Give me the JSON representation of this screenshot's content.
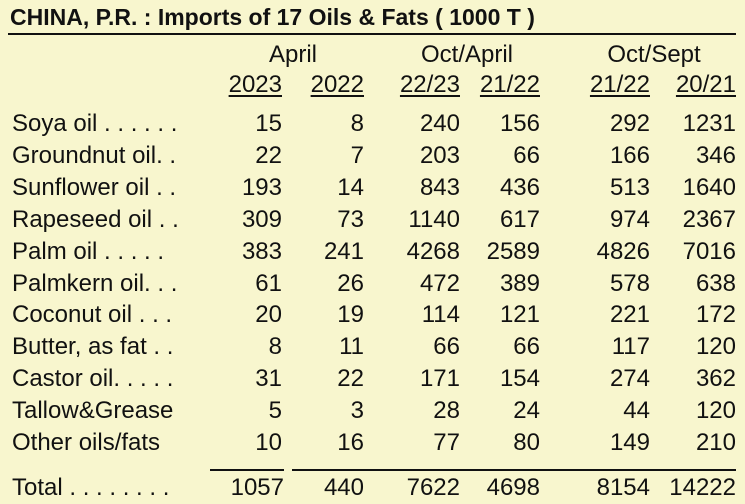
{
  "title": "CHINA, P.R. :  Imports of 17 Oils & Fats   ( 1000 T )",
  "groups": [
    "April",
    "Oct/April",
    "Oct/Sept"
  ],
  "periods": [
    "2023",
    "2022",
    "22/23",
    "21/22",
    "21/22",
    "20/21"
  ],
  "rows": [
    {
      "label": "Soya oil . . . . . .",
      "values": [
        "15",
        "8",
        "240",
        "156",
        "292",
        "1231"
      ]
    },
    {
      "label": "Groundnut oil. .",
      "values": [
        "22",
        "7",
        "203",
        "66",
        "166",
        "346"
      ]
    },
    {
      "label": "Sunflower oil . .",
      "values": [
        "193",
        "14",
        "843",
        "436",
        "513",
        "1640"
      ]
    },
    {
      "label": "Rapeseed oil . .",
      "values": [
        "309",
        "73",
        "1140",
        "617",
        "974",
        "2367"
      ]
    },
    {
      "label": "Palm oil . . . . .",
      "values": [
        "383",
        "241",
        "4268",
        "2589",
        "4826",
        "7016"
      ]
    },
    {
      "label": "Palmkern oil. . .",
      "values": [
        "61",
        "26",
        "472",
        "389",
        "578",
        "638"
      ]
    },
    {
      "label": "Coconut oil  . . .",
      "values": [
        "20",
        "19",
        "114",
        "121",
        "221",
        "172"
      ]
    },
    {
      "label": "Butter, as fat . .",
      "values": [
        "8",
        "11",
        "66",
        "66",
        "117",
        "120"
      ]
    },
    {
      "label": "Castor oil. . . . .",
      "values": [
        "31",
        "22",
        "171",
        "154",
        "274",
        "362"
      ]
    },
    {
      "label": "Tallow&Grease",
      "values": [
        "5",
        "3",
        "28",
        "24",
        "44",
        "120"
      ]
    },
    {
      "label": "Other oils/fats",
      "values": [
        "10",
        "16",
        "77",
        "80",
        "149",
        "210"
      ]
    }
  ],
  "total": {
    "label": "Total  . . . . . . . .",
    "values": [
      "1057",
      "440",
      "7622",
      "4698",
      "8154",
      "14222"
    ]
  }
}
